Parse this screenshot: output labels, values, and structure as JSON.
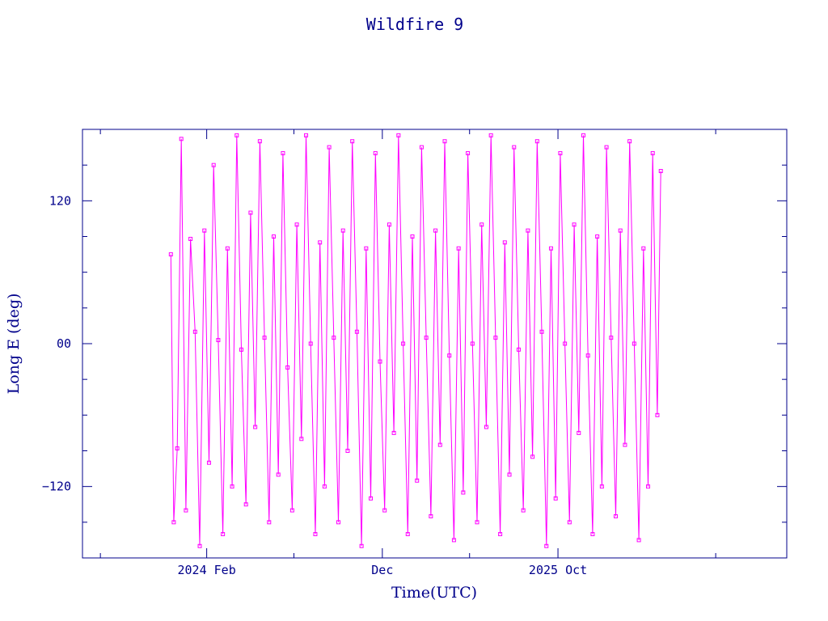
{
  "chart_data": {
    "type": "line",
    "title": "Wildfire 9",
    "xlabel": "Time(UTC)",
    "ylabel": "Long E (deg)",
    "xlim": [
      "2023-07-01",
      "2026-11-01"
    ],
    "ylim": [
      -180,
      180
    ],
    "yticks": [
      {
        "value": -120,
        "label": "−120"
      },
      {
        "value": 0,
        "label": "00"
      },
      {
        "value": 120,
        "label": "120"
      }
    ],
    "xticks": [
      {
        "value": "2024-02-01",
        "label": "2024 Feb"
      },
      {
        "value": "2024-12-01",
        "label": "Dec"
      },
      {
        "value": "2025-10-01",
        "label": "2025 Oct"
      }
    ],
    "x_range_data": [
      "2023-12-01",
      "2026-03-28"
    ],
    "series": [
      {
        "marker": "square",
        "color": "#ff00ff",
        "x": [
          "2023-12-01",
          "2023-12-06",
          "2023-12-12",
          "2023-12-19",
          "2023-12-27",
          "2024-01-04",
          "2024-01-12",
          "2024-01-20",
          "2024-01-28",
          "2024-02-05",
          "2024-02-13",
          "2024-02-21",
          "2024-02-29",
          "2024-03-08",
          "2024-03-16",
          "2024-03-24",
          "2024-04-01",
          "2024-04-09",
          "2024-04-17",
          "2024-04-25",
          "2024-05-03",
          "2024-05-11",
          "2024-05-19",
          "2024-05-27",
          "2024-06-04",
          "2024-06-12",
          "2024-06-20",
          "2024-06-28",
          "2024-07-06",
          "2024-07-14",
          "2024-07-22",
          "2024-07-30",
          "2024-08-07",
          "2024-08-15",
          "2024-08-23",
          "2024-08-31",
          "2024-09-08",
          "2024-09-16",
          "2024-09-24",
          "2024-10-02",
          "2024-10-10",
          "2024-10-18",
          "2024-10-26",
          "2024-11-03",
          "2024-11-11",
          "2024-11-19",
          "2024-11-27",
          "2024-12-05",
          "2024-12-13",
          "2024-12-21",
          "2024-12-29",
          "2025-01-06",
          "2025-01-14",
          "2025-01-22",
          "2025-01-30",
          "2025-02-07",
          "2025-02-15",
          "2025-02-23",
          "2025-03-03",
          "2025-03-11",
          "2025-03-19",
          "2025-03-27",
          "2025-04-04",
          "2025-04-12",
          "2025-04-20",
          "2025-04-28",
          "2025-05-06",
          "2025-05-14",
          "2025-05-22",
          "2025-05-30",
          "2025-06-07",
          "2025-06-15",
          "2025-06-23",
          "2025-07-01",
          "2025-07-09",
          "2025-07-17",
          "2025-07-25",
          "2025-08-02",
          "2025-08-10",
          "2025-08-18",
          "2025-08-26",
          "2025-09-03",
          "2025-09-11",
          "2025-09-19",
          "2025-09-27",
          "2025-10-05",
          "2025-10-13",
          "2025-10-21",
          "2025-10-29",
          "2025-11-06",
          "2025-11-14",
          "2025-11-22",
          "2025-11-30",
          "2025-12-08",
          "2025-12-16",
          "2025-12-24",
          "2026-01-01",
          "2026-01-09",
          "2026-01-17",
          "2026-01-25",
          "2026-02-02",
          "2026-02-10",
          "2026-02-18",
          "2026-02-26",
          "2026-03-06",
          "2026-03-14",
          "2026-03-22",
          "2026-03-28"
        ],
        "y": [
          75,
          -150,
          -88,
          172,
          -140,
          88,
          10,
          -170,
          95,
          -100,
          150,
          3,
          -160,
          80,
          -120,
          175,
          -5,
          -135,
          110,
          -70,
          170,
          5,
          -150,
          90,
          -110,
          160,
          -20,
          -140,
          100,
          -80,
          175,
          0,
          -160,
          85,
          -120,
          165,
          5,
          -150,
          95,
          -90,
          170,
          10,
          -170,
          80,
          -130,
          160,
          -15,
          -140,
          100,
          -75,
          175,
          0,
          -160,
          90,
          -115,
          165,
          5,
          -145,
          95,
          -85,
          170,
          -10,
          -165,
          80,
          -125,
          160,
          0,
          -150,
          100,
          -70,
          175,
          5,
          -160,
          85,
          -110,
          165,
          -5,
          -140,
          95,
          -95,
          170,
          10,
          -170,
          80,
          -130,
          160,
          0,
          -150,
          100,
          -75,
          175,
          -10,
          -160,
          90,
          -120,
          165,
          5,
          -145,
          95,
          -85,
          170,
          0,
          -165,
          80,
          -120,
          160,
          -60,
          145
        ]
      }
    ]
  }
}
